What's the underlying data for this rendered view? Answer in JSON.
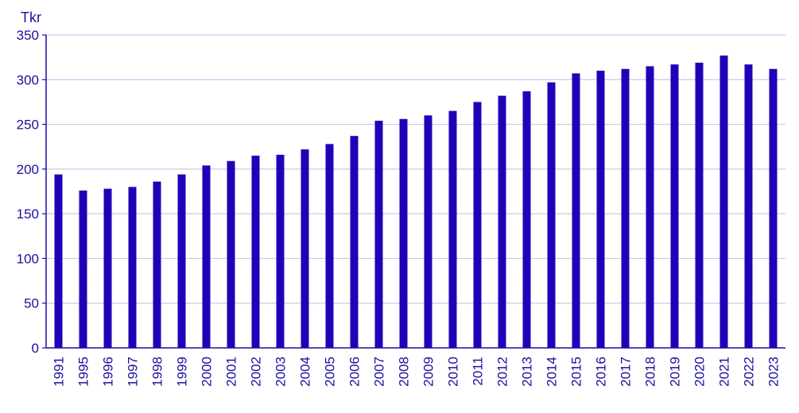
{
  "chart_data": {
    "type": "bar",
    "title": "",
    "xlabel": "",
    "ylabel": "Tkr",
    "ylim": [
      0,
      350
    ],
    "yticks": [
      0,
      50,
      100,
      150,
      200,
      250,
      300,
      350
    ],
    "grid": true,
    "categories": [
      "1991",
      "1995",
      "1996",
      "1997",
      "1998",
      "1999",
      "2000",
      "2001",
      "2002",
      "2003",
      "2004",
      "2005",
      "2006",
      "2007",
      "2008",
      "2009",
      "2010",
      "2011",
      "2012",
      "2013",
      "2014",
      "2015",
      "2016",
      "2017",
      "2018",
      "2019",
      "2020",
      "2021",
      "2022",
      "2023"
    ],
    "values": [
      194,
      176,
      178,
      180,
      186,
      194,
      204,
      209,
      215,
      216,
      222,
      228,
      237,
      254,
      256,
      260,
      265,
      275,
      282,
      287,
      297,
      307,
      310,
      312,
      315,
      317,
      319,
      327,
      317,
      312
    ],
    "colors": {
      "bar": "#2200b8",
      "text": "#1a0fa0",
      "grid": "#c9c9ee",
      "axis": "#1a0fa0"
    }
  }
}
